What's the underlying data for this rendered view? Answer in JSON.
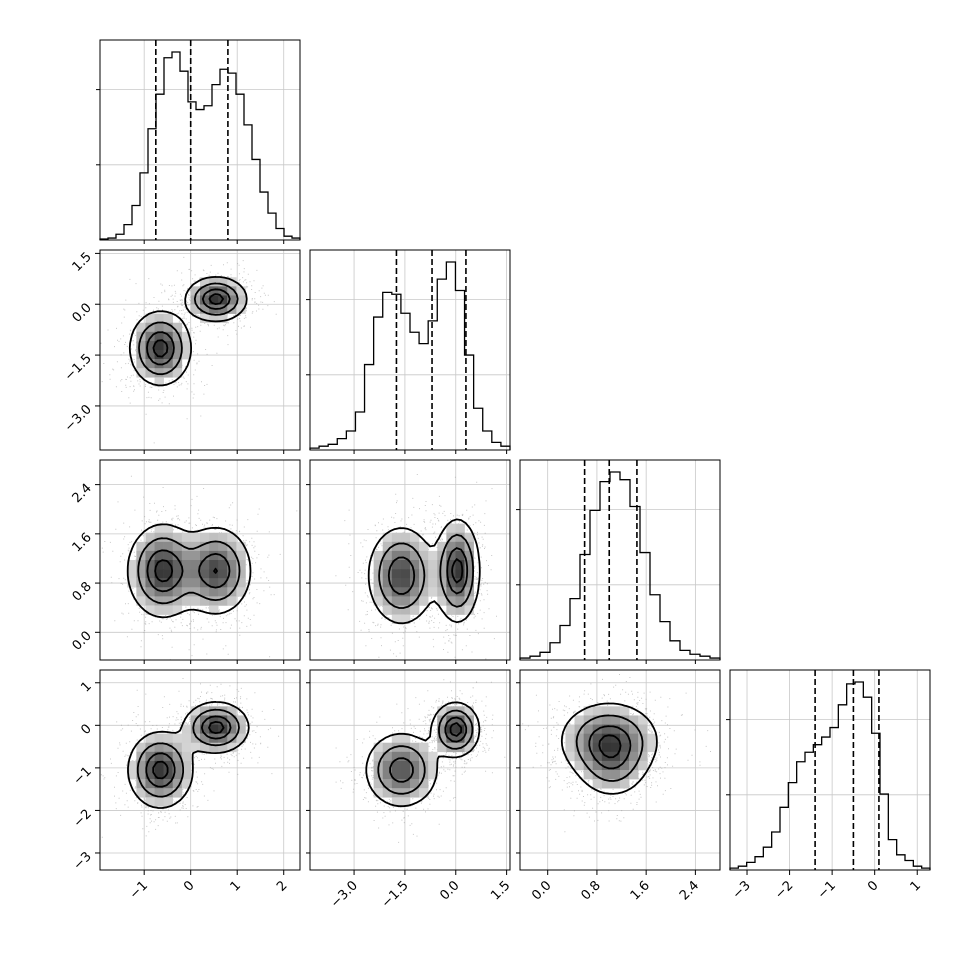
{
  "chart_data": {
    "type": "corner",
    "variables": [
      {
        "xticks": [
          -1,
          0,
          1,
          2
        ],
        "xtick_labels": [
          "−1",
          "0",
          "1",
          "2"
        ],
        "range": [
          -1.95,
          2.35
        ]
      },
      {
        "xticks": [
          -3.0,
          -1.5,
          0.0,
          1.5
        ],
        "xtick_labels": [
          "−3.0",
          "−1.5",
          "0.0",
          "1.5"
        ],
        "range": [
          -4.3,
          1.6
        ]
      },
      {
        "xticks": [
          0.0,
          0.8,
          1.6,
          2.4
        ],
        "xtick_labels": [
          "0.0",
          "0.8",
          "1.6",
          "2.4"
        ],
        "range": [
          -0.45,
          2.8
        ]
      },
      {
        "xticks": [
          -3,
          -2,
          -1,
          0,
          1
        ],
        "xtick_labels": [
          "−3",
          "−2",
          "−1",
          "0",
          "1"
        ],
        "range": [
          -3.4,
          1.3
        ]
      }
    ],
    "histograms": [
      {
        "quantiles": [
          -0.75,
          0.0,
          0.8
        ],
        "counts": [
          0.5,
          1,
          3,
          8,
          18,
          35,
          58,
          76,
          95,
          98,
          88,
          72,
          68,
          70,
          81,
          89,
          87,
          76,
          60,
          42,
          25,
          14,
          6,
          2,
          1
        ]
      },
      {
        "quantiles": [
          -1.75,
          -0.7,
          0.3
        ],
        "counts": [
          1,
          2,
          3,
          6,
          10,
          20,
          45,
          70,
          83,
          82,
          72,
          62,
          56,
          68,
          90,
          99,
          84,
          50,
          22,
          10,
          4,
          2
        ]
      },
      {
        "quantiles": [
          0.6,
          1.0,
          1.45
        ],
        "counts": [
          1,
          2,
          4,
          9,
          18,
          32,
          55,
          78,
          93,
          98,
          94,
          80,
          56,
          34,
          20,
          10,
          5,
          3,
          2,
          1
        ]
      },
      {
        "quantiles": [
          -1.4,
          -0.5,
          0.1
        ],
        "counts": [
          1,
          2,
          4,
          7,
          12,
          20,
          33,
          46,
          57,
          62,
          66,
          70,
          75,
          87,
          98,
          99,
          91,
          72,
          40,
          16,
          8,
          5,
          2,
          1
        ]
      }
    ],
    "pairs": [
      {
        "row": 1,
        "col": 0,
        "blobs": [
          {
            "cx": -0.65,
            "cy": -1.3,
            "rx": 0.33,
            "ry": 0.55,
            "w": 1.0
          },
          {
            "cx": 0.55,
            "cy": 0.15,
            "rx": 0.33,
            "ry": 0.33,
            "w": 1.0
          }
        ]
      },
      {
        "row": 2,
        "col": 0,
        "blobs": [
          {
            "cx": -0.6,
            "cy": 1.0,
            "rx": 0.38,
            "ry": 0.38,
            "w": 1.05
          },
          {
            "cx": 0.55,
            "cy": 1.0,
            "rx": 0.38,
            "ry": 0.36,
            "w": 0.95
          }
        ]
      },
      {
        "row": 2,
        "col": 1,
        "blobs": [
          {
            "cx": -1.6,
            "cy": 0.92,
            "rx": 0.5,
            "ry": 0.4,
            "w": 0.95
          },
          {
            "cx": 0.05,
            "cy": 1.0,
            "rx": 0.33,
            "ry": 0.42,
            "w": 1.05
          }
        ]
      },
      {
        "row": 3,
        "col": 0,
        "blobs": [
          {
            "cx": -0.65,
            "cy": -1.05,
            "rx": 0.35,
            "ry": 0.45,
            "w": 1.0
          },
          {
            "cx": 0.55,
            "cy": -0.05,
            "rx": 0.35,
            "ry": 0.3,
            "w": 1.0
          }
        ]
      },
      {
        "row": 3,
        "col": 1,
        "blobs": [
          {
            "cx": -1.6,
            "cy": -1.05,
            "rx": 0.55,
            "ry": 0.45,
            "w": 0.9
          },
          {
            "cx": 0.0,
            "cy": -0.1,
            "rx": 0.35,
            "ry": 0.32,
            "w": 1.1
          }
        ]
      },
      {
        "row": 3,
        "col": 2,
        "blobs": [
          {
            "cx": 1.0,
            "cy": -0.35,
            "rx": 0.4,
            "ry": 0.45,
            "w": 1.0
          },
          {
            "cx": 1.05,
            "cy": -1.0,
            "rx": 0.3,
            "ry": 0.4,
            "w": 0.45
          }
        ]
      }
    ],
    "yticks_left": [
      {
        "row": 1,
        "ticks": [
          1.5,
          0.0,
          -1.5,
          -3.0
        ],
        "tick_labels": [
          "1.5",
          "0.0",
          "−1.5",
          "−3.0"
        ],
        "range": [
          -4.3,
          1.6
        ]
      },
      {
        "row": 2,
        "ticks": [
          2.4,
          1.6,
          0.8,
          0.0
        ],
        "tick_labels": [
          "2.4",
          "1.6",
          "0.8",
          "0.0"
        ],
        "range": [
          -0.45,
          2.8
        ]
      },
      {
        "row": 3,
        "ticks": [
          1,
          0,
          -1,
          -2,
          -3
        ],
        "tick_labels": [
          "1",
          "0",
          "−1",
          "−2",
          "−3"
        ],
        "range": [
          -3.4,
          1.3
        ]
      }
    ],
    "grid": true,
    "legend": "none"
  }
}
